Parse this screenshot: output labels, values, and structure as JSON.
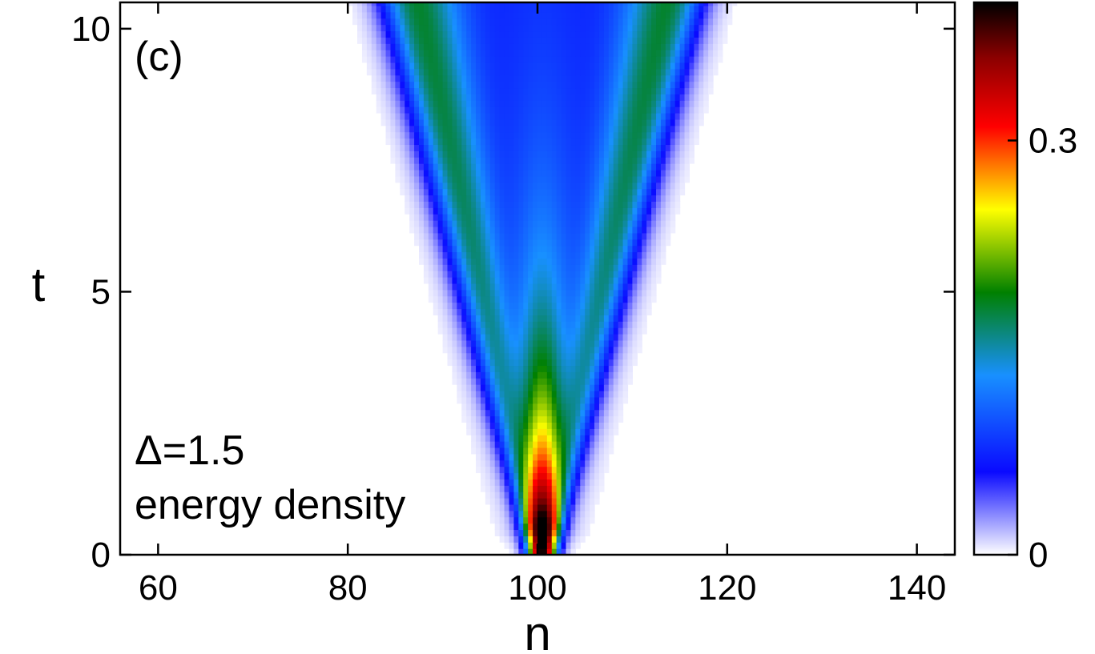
{
  "chart_data": {
    "type": "heatmap",
    "panel_label": "(c)",
    "xlabel": "n",
    "ylabel": "t",
    "xlim": [
      56,
      144
    ],
    "ylim": [
      0,
      10.5
    ],
    "x_ticks": [
      60,
      80,
      100,
      120,
      140
    ],
    "x_tick_labels": [
      "60",
      "80",
      "100",
      "120",
      "140"
    ],
    "y_ticks": [
      0,
      5,
      10
    ],
    "y_tick_labels": [
      "0",
      "5",
      "10"
    ],
    "annotations": [
      "Δ=1.5",
      "energy density"
    ],
    "colorbar": {
      "range": [
        0,
        0.4
      ],
      "ticks": [
        0,
        0.3
      ],
      "tick_labels": [
        "0",
        "0.3"
      ],
      "colors": [
        {
          "value": 0.0,
          "color": "#ffffff"
        },
        {
          "value": 0.06,
          "color": "#0a0aff"
        },
        {
          "value": 0.13,
          "color": "#1890ff"
        },
        {
          "value": 0.19,
          "color": "#008000"
        },
        {
          "value": 0.25,
          "color": "#ffff00"
        },
        {
          "value": 0.28,
          "color": "#ff8000"
        },
        {
          "value": 0.31,
          "color": "#ff0000"
        },
        {
          "value": 0.36,
          "color": "#8b0000"
        },
        {
          "value": 0.4,
          "color": "#000000"
        }
      ]
    },
    "field": {
      "center_n": 100.5,
      "front_speed": 1.5,
      "core_halfwidth_n": 1.5,
      "core_peak": 0.4,
      "core_decay_t": 3.0,
      "edge_peak": 0.12,
      "background_level": 0.07,
      "front_softness_n": 1.2
    }
  }
}
